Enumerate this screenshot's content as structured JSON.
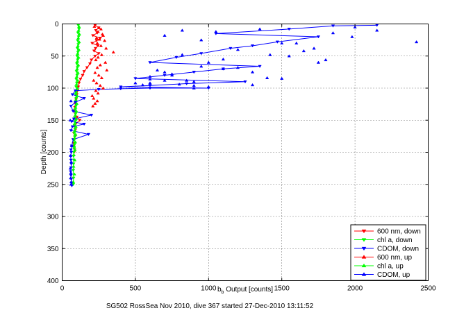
{
  "chart_data": {
    "type": "scatter",
    "title": "",
    "xlabel_main": "b",
    "xlabel_sub": "b",
    "xlabel_rest": " Output [counts]",
    "ylabel": "Depth [counts]",
    "caption": "SG502 RossSea Nov 2010, dive 367 started 27-Dec-2010 13:11:52",
    "xlim": [
      0,
      2500
    ],
    "ylim": [
      0,
      400
    ],
    "y_reversed": true,
    "grid": true,
    "legend_position": "bottom-right",
    "x_ticks": [
      "0",
      "500",
      "1000",
      "1500",
      "2000",
      "2500"
    ],
    "y_ticks": [
      "0",
      "50",
      "100",
      "150",
      "200",
      "250",
      "300",
      "350",
      "400"
    ],
    "series": [
      {
        "name": "600 nm, down",
        "color": "#ff0000",
        "marker": "triangle-down",
        "connected": true,
        "x": [
          225,
          250,
          230,
          240,
          210,
          260,
          235,
          205,
          245,
          228,
          218,
          250,
          225,
          200,
          190,
          170,
          150,
          140,
          125,
          115,
          110,
          105,
          100,
          95,
          90,
          88,
          85,
          90,
          100,
          120,
          95,
          85,
          90,
          80,
          90,
          82,
          78,
          80,
          85,
          82
        ],
        "y": [
          2,
          6,
          10,
          14,
          18,
          22,
          26,
          30,
          34,
          38,
          42,
          46,
          50,
          56,
          62,
          68,
          74,
          80,
          86,
          92,
          98,
          104,
          110,
          118,
          124,
          130,
          135,
          140,
          145,
          150,
          155,
          160,
          165,
          170,
          175,
          180,
          186,
          190,
          196,
          200
        ]
      },
      {
        "name": "chl a, down",
        "color": "#00ff00",
        "marker": "triangle-down",
        "connected": true,
        "x": [
          110,
          115,
          108,
          112,
          106,
          110,
          104,
          108,
          102,
          106,
          100,
          104,
          98,
          102,
          96,
          100,
          95,
          98,
          92,
          96,
          90,
          94,
          88,
          92,
          86,
          90,
          84,
          88,
          82,
          86,
          80,
          84,
          82,
          80,
          78,
          80,
          78,
          76,
          78,
          76
        ],
        "y": [
          2,
          8,
          14,
          20,
          26,
          32,
          38,
          44,
          50,
          56,
          62,
          68,
          74,
          80,
          86,
          92,
          98,
          104,
          110,
          116,
          122,
          128,
          134,
          140,
          146,
          152,
          158,
          164,
          170,
          176,
          182,
          188,
          194,
          200,
          206,
          212,
          218,
          228,
          240,
          250
        ]
      },
      {
        "name": "CDOM, down",
        "color": "#0000ff",
        "marker": "triangle-down",
        "connected": true,
        "x": [
          2150,
          1850,
          1550,
          1050,
          1750,
          1470,
          1300,
          1150,
          950,
          780,
          600,
          1350,
          1100,
          900,
          700,
          500,
          1250,
          850,
          600,
          400,
          1000,
          600,
          400,
          250,
          90,
          70,
          150,
          90,
          60,
          75,
          200,
          80,
          65,
          150,
          70,
          60,
          180,
          75,
          65,
          60,
          62,
          58,
          60,
          62,
          60,
          58,
          60,
          62,
          64,
          66
        ],
        "y": [
          2,
          3,
          8,
          15,
          20,
          28,
          34,
          38,
          46,
          52,
          60,
          66,
          70,
          75,
          80,
          85,
          90,
          93,
          96,
          98,
          100,
          100,
          101,
          102,
          104,
          110,
          116,
          122,
          128,
          136,
          142,
          148,
          152,
          156,
          160,
          166,
          172,
          180,
          190,
          196,
          200,
          206,
          212,
          218,
          224,
          230,
          236,
          242,
          248,
          252
        ]
      },
      {
        "name": "600 nm, up",
        "color": "#ff0000",
        "marker": "triangle-up",
        "connected": false,
        "x": [
          220,
          250,
          265,
          245,
          275,
          280,
          235,
          255,
          290,
          240,
          265,
          300,
          350,
          270,
          245,
          230,
          295,
          260,
          240,
          305,
          225,
          250,
          270,
          215,
          235,
          260,
          280,
          230,
          245,
          205,
          215,
          240,
          225,
          210
        ],
        "y": [
          4,
          6,
          8,
          12,
          16,
          18,
          22,
          24,
          26,
          30,
          34,
          38,
          44,
          48,
          52,
          56,
          60,
          64,
          68,
          72,
          76,
          80,
          84,
          88,
          92,
          96,
          100,
          104,
          108,
          112,
          116,
          120,
          124,
          128
        ]
      },
      {
        "name": "chl a, up",
        "color": "#00ff00",
        "marker": "triangle-up",
        "connected": false,
        "x": [
          115,
          112,
          118,
          110,
          116,
          108,
          114,
          106,
          112,
          104,
          110,
          102,
          108,
          100,
          106,
          98,
          104,
          96,
          102,
          94,
          100,
          92,
          98,
          90,
          96,
          88,
          94,
          86,
          92,
          84,
          90,
          82,
          88,
          80,
          86,
          78,
          84,
          76
        ],
        "y": [
          4,
          10,
          16,
          22,
          28,
          34,
          40,
          46,
          52,
          58,
          64,
          70,
          76,
          82,
          88,
          94,
          100,
          106,
          112,
          118,
          124,
          130,
          136,
          142,
          148,
          154,
          160,
          166,
          172,
          178,
          184,
          190,
          196,
          204,
          212,
          222,
          234,
          246
        ]
      },
      {
        "name": "CDOM, up",
        "color": "#0000ff",
        "marker": "triangle-up",
        "connected": false,
        "x": [
          2420,
          2150,
          1980,
          1850,
          1720,
          1600,
          1420,
          1350,
          1200,
          1050,
          950,
          820,
          700,
          2000,
          1800,
          1650,
          1500,
          1300,
          1100,
          950,
          820,
          650,
          1750,
          1500,
          1200,
          900,
          750,
          600,
          1550,
          1300,
          1000,
          850,
          700,
          550,
          1400,
          1100,
          900,
          750,
          600,
          1000,
          900,
          800,
          700,
          600,
          500,
          60,
          55,
          65,
          58,
          62,
          56,
          60,
          58,
          62,
          60
        ],
        "y": [
          28,
          10,
          20,
          14,
          38,
          30,
          48,
          8,
          40,
          12,
          25,
          10,
          18,
          5,
          56,
          42,
          30,
          75,
          55,
          66,
          48,
          72,
          60,
          85,
          68,
          90,
          80,
          92,
          50,
          95,
          98,
          88,
          75,
          95,
          84,
          70,
          96,
          78,
          86,
          60,
          100,
          94,
          88,
          82,
          92,
          120,
          150,
          190,
          205,
          215,
          225,
          232,
          240,
          246,
          250
        ]
      }
    ]
  }
}
